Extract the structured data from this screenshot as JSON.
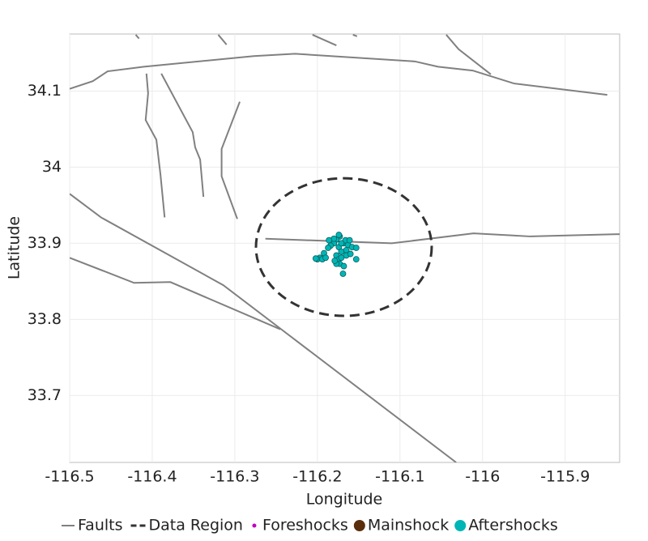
{
  "chart_data": {
    "type": "scatter",
    "x_label": "Longitude",
    "y_label": "Latitude",
    "xlim": [
      -116.5,
      -115.834
    ],
    "ylim": [
      33.612,
      34.175
    ],
    "xticks": [
      -116.5,
      -116.4,
      -116.3,
      -116.2,
      -116.1,
      -116,
      -115.9
    ],
    "yticks": [
      33.7,
      33.8,
      33.9,
      34,
      34.1
    ],
    "grid": true,
    "legend_position": "bottom",
    "faults": {
      "name": "Faults",
      "color": "#808080",
      "lines": [
        {
          "x": [
            -116.5,
            -116.472,
            -116.454,
            -116.41,
            -116.277,
            -116.227,
            -116.082,
            -116.054,
            -116.012,
            -115.962,
            -115.849
          ],
          "y": [
            34.103,
            34.113,
            34.126,
            34.132,
            34.146,
            34.149,
            34.139,
            34.132,
            34.127,
            34.11,
            34.095
          ]
        },
        {
          "x": [
            -116.42,
            -116.416
          ],
          "y": [
            34.174,
            34.169
          ]
        },
        {
          "x": [
            -116.32,
            -116.31
          ],
          "y": [
            34.174,
            34.161
          ]
        },
        {
          "x": [
            -116.206,
            -116.177
          ],
          "y": [
            34.174,
            34.16
          ]
        },
        {
          "x": [
            -116.157,
            -116.152
          ],
          "y": [
            34.174,
            34.172
          ]
        },
        {
          "x": [
            -116.044,
            -116.029,
            -115.99
          ],
          "y": [
            34.174,
            34.155,
            34.122
          ]
        },
        {
          "x": [
            -116.407,
            -116.405,
            -116.408,
            -116.395,
            -116.39,
            -116.385
          ],
          "y": [
            34.123,
            34.097,
            34.062,
            34.036,
            33.99,
            33.934
          ]
        },
        {
          "x": [
            -116.389,
            -116.351,
            -116.348,
            -116.342,
            -116.338
          ],
          "y": [
            34.123,
            34.046,
            34.026,
            34.01,
            33.961
          ]
        },
        {
          "x": [
            -116.294,
            -116.316,
            -116.316,
            -116.297
          ],
          "y": [
            34.086,
            34.024,
            33.988,
            33.932
          ]
        },
        {
          "x": [
            -116.263,
            -116.11,
            -116.011,
            -115.942,
            -115.834
          ],
          "y": [
            33.906,
            33.9,
            33.913,
            33.909,
            33.912
          ]
        },
        {
          "x": [
            -116.5,
            -116.462,
            -116.314,
            -116.245,
            -116.032
          ],
          "y": [
            33.965,
            33.934,
            33.845,
            33.788,
            33.612
          ]
        },
        {
          "x": [
            -116.5,
            -116.422,
            -116.378,
            -116.245
          ],
          "y": [
            33.881,
            33.848,
            33.849,
            33.787
          ]
        }
      ]
    },
    "region": {
      "name": "Data Region",
      "color": "#333333",
      "center": [
        -116.168,
        33.895
      ],
      "radius": [
        0.1064,
        0.0904
      ]
    },
    "series": [
      {
        "name": "Foreshocks",
        "color": "#c000c0",
        "x": [],
        "y": []
      },
      {
        "name": "Mainshock",
        "color": "#5a2d0c",
        "x": [],
        "y": []
      },
      {
        "name": "Aftershocks",
        "color": "#00b5b5",
        "x": [
          -116.173,
          -116.177,
          -116.182,
          -116.168,
          -116.163,
          -116.174,
          -116.171,
          -116.165,
          -116.158,
          -116.153,
          -116.18,
          -116.184,
          -116.187,
          -116.192,
          -116.197,
          -116.2,
          -116.194,
          -116.19,
          -116.202,
          -116.177,
          -116.174,
          -116.173,
          -116.168,
          -116.177,
          -116.179,
          -116.171,
          -116.165,
          -116.16,
          -116.153,
          -116.169,
          -116.174,
          -116.18,
          -116.166,
          -116.161,
          -116.186,
          -116.171
        ],
        "y": [
          33.909,
          33.905,
          33.902,
          33.9,
          33.898,
          33.895,
          33.889,
          33.891,
          33.895,
          33.894,
          33.9,
          33.897,
          33.894,
          33.887,
          33.881,
          33.879,
          33.879,
          33.881,
          33.88,
          33.884,
          33.879,
          33.873,
          33.87,
          33.873,
          33.877,
          33.881,
          33.884,
          33.886,
          33.879,
          33.86,
          33.911,
          33.906,
          33.904,
          33.904,
          33.904,
          33.9
        ]
      }
    ]
  }
}
